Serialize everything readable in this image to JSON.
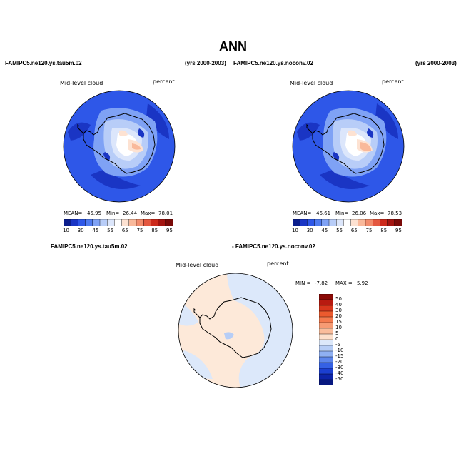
{
  "title": "ANN",
  "panels": [
    {
      "case": "FAMIPC5.ne120.ys.tau5m.02",
      "years": "(yrs 2000-2003)",
      "variable": "Mid-level cloud",
      "units": "percent",
      "stats": {
        "mean_label": "MEAN=",
        "mean": "45.95",
        "min_label": "Min=",
        "min": "26.44",
        "max_label": "Max=",
        "max": "78.01"
      }
    },
    {
      "case": "FAMIPC5.ne120.ys.noconv.02",
      "years": "(yrs 2000-2003)",
      "variable": "Mid-level cloud",
      "units": "percent",
      "stats": {
        "mean_label": "MEAN=",
        "mean": "46.61",
        "min_label": "Min=",
        "min": "26.06",
        "max_label": "Max=",
        "max": "78.53"
      }
    }
  ],
  "diff_panel": {
    "case_a": "FAMIPC5.ne120.ys.tau5m.02",
    "case_b": "- FAMIPC5.ne120.ys.noconv.02",
    "variable": "Mid-level cloud",
    "units": "percent",
    "stats": {
      "min_label": "MIN =",
      "min": "-7.82",
      "max_label": "MAX =",
      "max": "5.92"
    }
  },
  "colorbar_abs": {
    "labels": [
      "10",
      "30",
      "45",
      "55",
      "65",
      "75",
      "85",
      "95"
    ],
    "colors": [
      "#0b1e8c",
      "#1a35c4",
      "#2e57e8",
      "#4f7bf0",
      "#7fa2f5",
      "#b8cdf8",
      "#dce6fb",
      "#ffffff",
      "#fde2d2",
      "#f9b99b",
      "#f28c6c",
      "#e4573f",
      "#cc2a1c",
      "#a31410",
      "#7a0a08"
    ]
  },
  "colorbar_diff": {
    "labels": [
      "50",
      "40",
      "30",
      "20",
      "15",
      "10",
      "5",
      "0",
      "-5",
      "-10",
      "-15",
      "-20",
      "-30",
      "-40",
      "-50"
    ],
    "colors": [
      "#8b0a06",
      "#b81a10",
      "#d8361c",
      "#ec5a2e",
      "#f47a4e",
      "#f79b74",
      "#fabd9c",
      "#fde0cc",
      "#dce8fa",
      "#b6cdf6",
      "#8fb0f2",
      "#5d86ec",
      "#3561e4",
      "#1b3fd0",
      "#0d24a8",
      "#071880"
    ]
  },
  "map_colors": {
    "base": "#2e57e8",
    "dark": "#1a35c4",
    "mid": "#7fa2f5",
    "light": "#b8cdf8",
    "pale": "#dce6fb",
    "white": "#ffffff",
    "warm1": "#fde2d2",
    "warm2": "#f9b99b",
    "diff_pos": "#fde9d9",
    "diff_neg": "#dce8fa",
    "diff_neg2": "#b6cdf6"
  }
}
